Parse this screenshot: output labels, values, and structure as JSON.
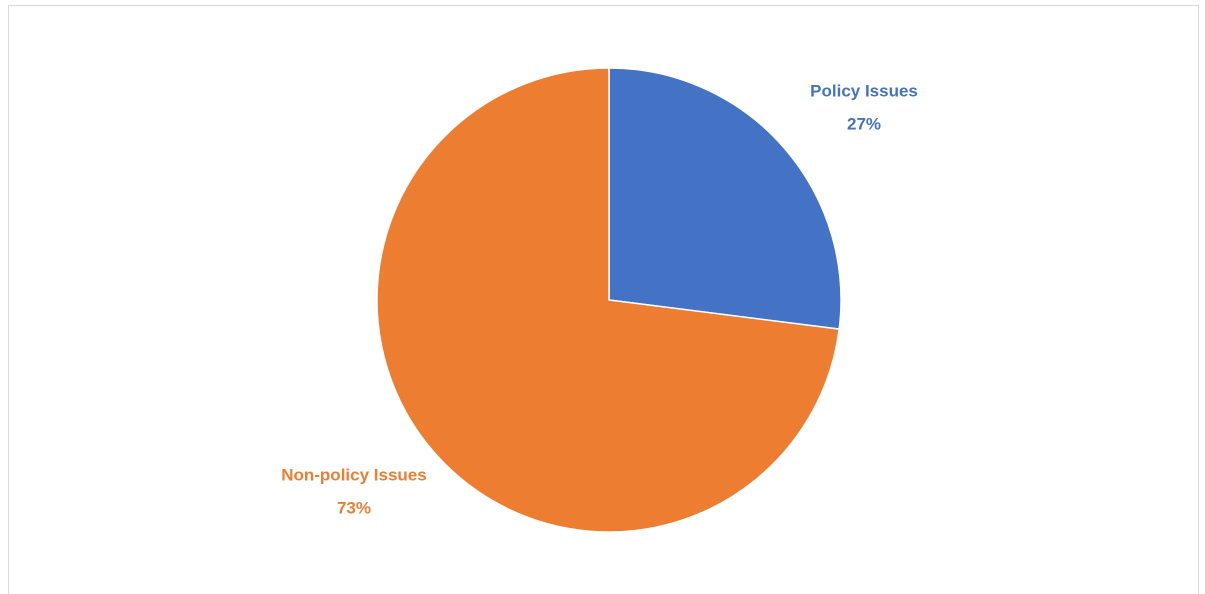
{
  "chart_data": {
    "type": "pie",
    "categories": [
      "Policy Issues",
      "Non-policy Issues"
    ],
    "values": [
      27,
      73
    ],
    "value_labels": [
      "27%",
      "73%"
    ],
    "colors": [
      "#4472c4",
      "#ed7d31"
    ]
  }
}
